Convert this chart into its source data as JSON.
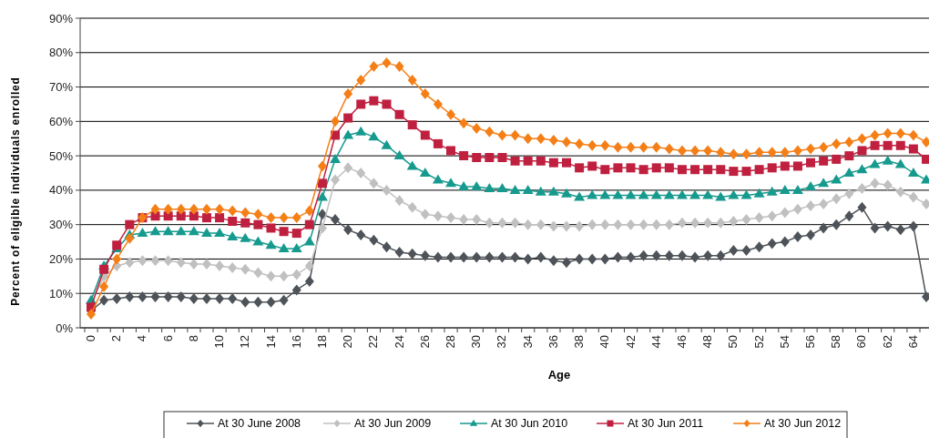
{
  "chart_data": {
    "type": "line",
    "xlabel": "Age",
    "ylabel": "Percent of eligible individuals enrolled",
    "categories": [
      "0",
      null,
      "2",
      null,
      "4",
      null,
      "6",
      null,
      "8",
      null,
      "10",
      null,
      "12",
      null,
      "14",
      null,
      "16",
      null,
      "18",
      null,
      "20",
      null,
      "22",
      null,
      "24",
      null,
      "26",
      null,
      "28",
      null,
      "30",
      null,
      "32",
      null,
      "34",
      null,
      "36",
      null,
      "38",
      null,
      "40",
      null,
      "42",
      null,
      "44",
      null,
      "46",
      null,
      "48",
      null,
      "50",
      null,
      "52",
      null,
      "54",
      null,
      "56",
      null,
      "58",
      null,
      "60",
      null,
      "62",
      null,
      "64",
      null
    ],
    "ylim": [
      0,
      90
    ],
    "yticks": [
      {
        "value": 0,
        "label": "0%"
      },
      {
        "value": 10,
        "label": "10%"
      },
      {
        "value": 20,
        "label": "20%"
      },
      {
        "value": 30,
        "label": "30%"
      },
      {
        "value": 40,
        "label": "40%"
      },
      {
        "value": 50,
        "label": "50%"
      },
      {
        "value": 60,
        "label": "60%"
      },
      {
        "value": 70,
        "label": "70%"
      },
      {
        "value": 80,
        "label": "80%"
      },
      {
        "value": 90,
        "label": "90%"
      }
    ],
    "grid": "y",
    "legend": "bottom",
    "line_style": "solid",
    "series": [
      {
        "name": "At 30 June 2008",
        "color": "#4d5358",
        "marker": "diamond",
        "values": [
          5,
          8,
          8.5,
          9,
          9,
          9,
          9,
          9,
          8.5,
          8.5,
          8.5,
          8.5,
          7.5,
          7.5,
          7.5,
          8,
          11,
          13.5,
          33,
          31.5,
          28.5,
          27,
          25.5,
          23.5,
          22,
          21.5,
          21,
          20.5,
          20.5,
          20.5,
          20.5,
          20.5,
          20.5,
          20.5,
          20,
          20.5,
          19.5,
          19,
          20,
          20,
          20,
          20.5,
          20.5,
          21,
          21,
          21,
          21,
          20.5,
          21,
          21,
          22.5,
          22.5,
          23.5,
          24.5,
          25,
          26.5,
          27,
          29,
          30,
          32.5,
          35,
          29,
          29.5,
          28.5,
          29.5,
          9
        ]
      },
      {
        "name": "At 30 Jun 2009",
        "color": "#c0c0c0",
        "marker": "diamond",
        "values": [
          7,
          15,
          18,
          19,
          19.5,
          19.5,
          19.5,
          19,
          18.5,
          18.5,
          18,
          17.5,
          17,
          16,
          15,
          15,
          15.5,
          18,
          29,
          43,
          46.5,
          45,
          42,
          40,
          37,
          35,
          33,
          32.5,
          32,
          31.5,
          31.5,
          30.5,
          30.5,
          30.5,
          30,
          30,
          29.5,
          29.5,
          29.5,
          30,
          30,
          30,
          30,
          30,
          30,
          30,
          30.5,
          30.5,
          30.5,
          30.5,
          31,
          31.5,
          32,
          32.5,
          33.5,
          34.5,
          35.5,
          36,
          37.5,
          39,
          40.5,
          42,
          41.5,
          39.5,
          38,
          36
        ]
      },
      {
        "name": "At 30 Jun 2010",
        "color": "#169a8e",
        "marker": "triangle",
        "values": [
          8,
          18,
          23,
          27,
          27.5,
          28,
          28,
          28,
          28,
          27.5,
          27.5,
          26.5,
          26,
          25,
          24,
          23,
          23,
          25,
          38,
          49,
          56,
          57,
          55.5,
          53,
          50,
          47,
          45,
          43,
          42,
          41,
          41,
          40.5,
          40.5,
          40,
          40,
          39.5,
          39.5,
          39,
          38,
          38.5,
          38.5,
          38.5,
          38.5,
          38.5,
          38.5,
          38.5,
          38.5,
          38.5,
          38.5,
          38,
          38.5,
          38.5,
          39,
          39.5,
          40,
          40,
          41,
          42,
          43,
          45,
          46,
          47.5,
          48.5,
          47.5,
          45,
          43
        ]
      },
      {
        "name": "At 30 Jun 2011",
        "color": "#c0203f",
        "marker": "square",
        "values": [
          6,
          17,
          24,
          30,
          32,
          32.5,
          32.5,
          32.5,
          32.5,
          32,
          32,
          31,
          30.5,
          30,
          29,
          28,
          27.5,
          30,
          42,
          56,
          61,
          65,
          66,
          65,
          62,
          59,
          56,
          53.5,
          51.5,
          50,
          49.5,
          49.5,
          49.5,
          48.5,
          48.5,
          48.5,
          48,
          48,
          46.5,
          47,
          46,
          46.5,
          46.5,
          46,
          46.5,
          46.5,
          46,
          46,
          46,
          46,
          45.5,
          45.5,
          46,
          46.5,
          47,
          47,
          48,
          48.5,
          49,
          50,
          51.5,
          53,
          53,
          53,
          52,
          49
        ]
      },
      {
        "name": "At 30 Jun 2012",
        "color": "#f57f17",
        "marker": "diamond",
        "values": [
          4,
          12,
          20,
          26,
          32,
          34.5,
          34.5,
          34.5,
          34.5,
          34.5,
          34.5,
          34,
          33.5,
          33,
          32,
          32,
          32,
          34,
          47,
          60,
          68,
          72,
          76,
          77,
          76,
          72,
          68,
          65,
          62,
          59.5,
          58,
          57,
          56,
          56,
          55,
          55,
          54.5,
          54,
          53.5,
          53,
          53,
          52.5,
          52.5,
          52.5,
          52.5,
          52,
          51.5,
          51.5,
          51.5,
          51,
          50.5,
          50.5,
          51,
          51,
          51,
          51.5,
          52,
          52.5,
          53.5,
          54,
          55,
          56,
          56.5,
          56.5,
          56,
          54
        ]
      }
    ]
  }
}
